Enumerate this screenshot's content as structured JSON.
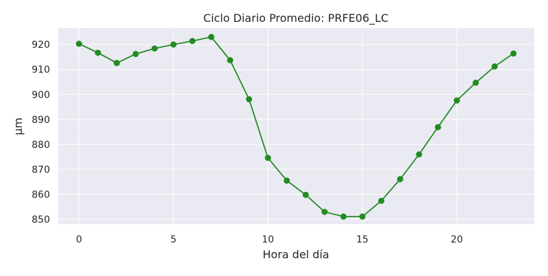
{
  "chart_data": {
    "type": "line",
    "title": "Ciclo Diario Promedio: PRFE06_LC",
    "xlabel": "Hora del día",
    "ylabel": "µm",
    "xlim": [
      -1.1,
      24.1
    ],
    "ylim": [
      848.1,
      926.6
    ],
    "xticks": [
      0,
      5,
      10,
      15,
      20
    ],
    "yticks": [
      850,
      860,
      870,
      880,
      890,
      900,
      910,
      920
    ],
    "grid": true,
    "series": [
      {
        "name": "PRFE06_LC",
        "color": "#228b22",
        "x": [
          0,
          1,
          2,
          3,
          4,
          5,
          6,
          7,
          8,
          9,
          10,
          11,
          12,
          13,
          14,
          15,
          16,
          17,
          18,
          19,
          20,
          21,
          22,
          23
        ],
        "y": [
          920.3,
          916.7,
          912.6,
          916.2,
          918.4,
          920.0,
          921.4,
          923.0,
          913.7,
          898.1,
          874.6,
          865.5,
          859.8,
          853.0,
          851.1,
          851.1,
          857.4,
          866.1,
          876.0,
          886.9,
          897.6,
          904.7,
          911.2,
          916.4
        ]
      }
    ]
  }
}
